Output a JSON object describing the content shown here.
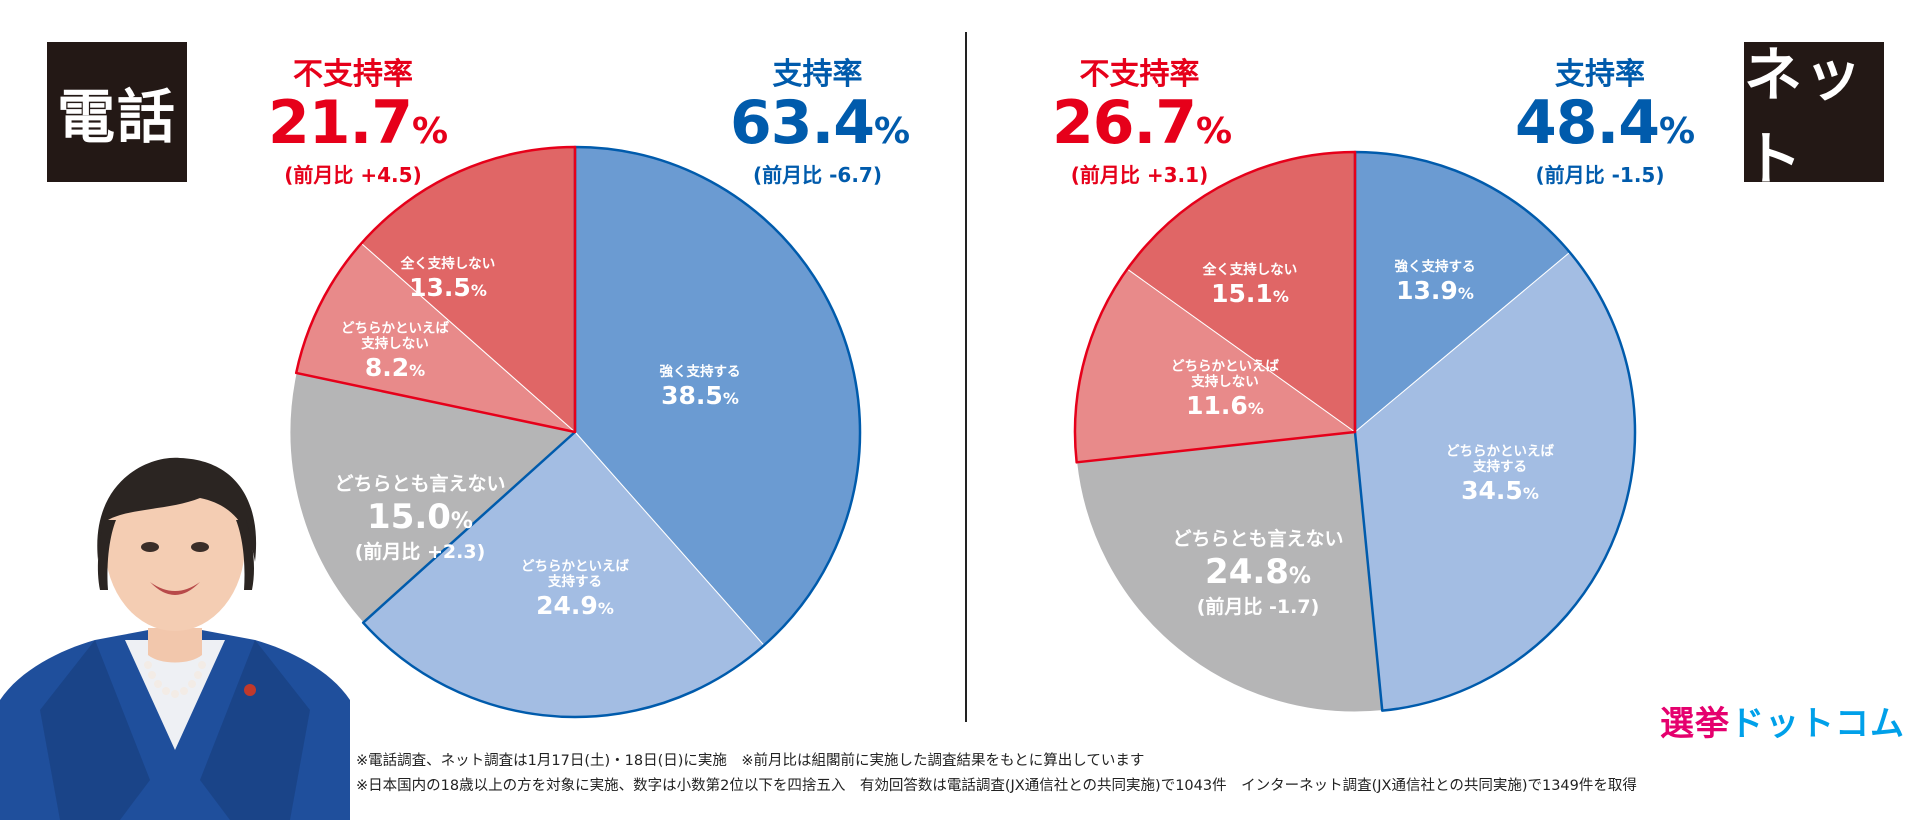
{
  "badges": {
    "phone": "電話",
    "net": "ネット"
  },
  "phone": {
    "disapproval": {
      "label": "不支持率",
      "value": "21.7",
      "unit": "%",
      "change": "(前月比 +4.5)"
    },
    "approval": {
      "label": "支持率",
      "value": "63.4",
      "unit": "%",
      "change": "(前月比 -6.7)"
    }
  },
  "net": {
    "disapproval": {
      "label": "不支持率",
      "value": "26.7",
      "unit": "%",
      "change": "(前月比 +3.1)"
    },
    "approval": {
      "label": "支持率",
      "value": "48.4",
      "unit": "%",
      "change": "(前月比 -1.5)"
    }
  },
  "chart_data": [
    {
      "type": "pie",
      "title": "電話",
      "slices": [
        {
          "label": "強く支持する",
          "value": 38.5,
          "color": "#6b9bd2",
          "group": "approve"
        },
        {
          "label": "どちらかといえば支持する",
          "value": 24.9,
          "color": "#a3bde3",
          "group": "approve"
        },
        {
          "label": "どちらとも言えない",
          "value": 15.0,
          "color": "#b5b5b6",
          "group": "neutral",
          "change": "(前月比 +2.3)"
        },
        {
          "label": "どちらかといえば支持しない",
          "value": 8.2,
          "color": "#e88a8a",
          "group": "disapprove"
        },
        {
          "label": "全く支持しない",
          "value": 13.5,
          "color": "#e06666",
          "group": "disapprove"
        }
      ]
    },
    {
      "type": "pie",
      "title": "ネット",
      "slices": [
        {
          "label": "強く支持する",
          "value": 13.9,
          "color": "#6b9bd2",
          "group": "approve"
        },
        {
          "label": "どちらかといえば支持する",
          "value": 34.5,
          "color": "#a3bde3",
          "group": "approve"
        },
        {
          "label": "どちらとも言えない",
          "value": 24.8,
          "color": "#b5b5b6",
          "group": "neutral",
          "change": "(前月比 -1.7)"
        },
        {
          "label": "どちらかといえば支持しない",
          "value": 11.6,
          "color": "#e88a8a",
          "group": "disapprove"
        },
        {
          "label": "全く支持しない",
          "value": 15.1,
          "color": "#e06666",
          "group": "disapprove"
        }
      ]
    }
  ],
  "colors": {
    "approve_outline": "#005bac",
    "disapprove_outline": "#e6001a"
  },
  "logo": {
    "part1": "選挙",
    "part2": "ドットコム"
  },
  "notes": [
    "※電話調査、ネット調査は1月17日(土)・18日(日)に実施　※前月比は組閣前に実施した調査結果をもとに算出しています",
    "※日本国内の18歳以上の方を対象に実施、数字は小数第2位以下を四捨五入　有効回答数は電話調査(JX通信社との共同実施)で1043件　インターネット調査(JX通信社との共同実施)で1349件を取得"
  ]
}
